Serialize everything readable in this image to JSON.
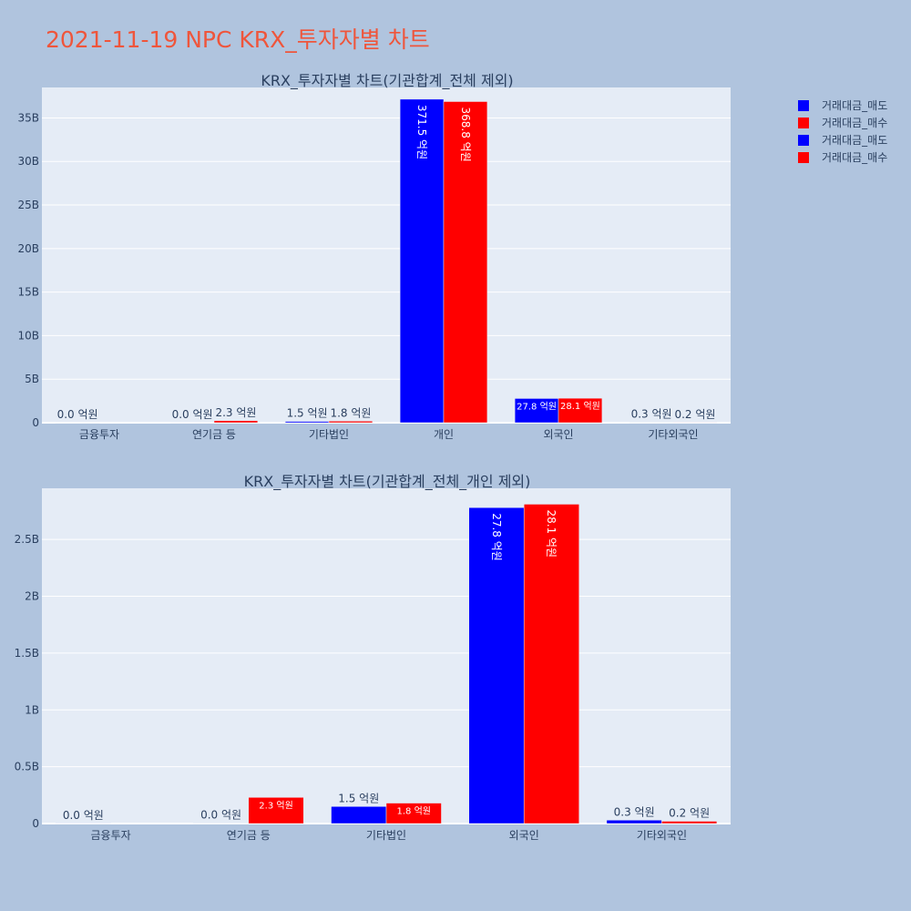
{
  "page_title": "2021-11-19 NPC KRX_투자자별 차트",
  "colors": {
    "sell": "#0000ff",
    "buy": "#ff0000",
    "plot_bg": "#e5ecf6",
    "paper_bg": "#b0c4de",
    "text": "#2a3f5f",
    "grid": "#ffffff"
  },
  "legend": {
    "items": [
      {
        "label": "거래대금_매도",
        "color": "#0000ff"
      },
      {
        "label": "거래대금_매수",
        "color": "#ff0000"
      },
      {
        "label": "거래대금_매도",
        "color": "#0000ff"
      },
      {
        "label": "거래대금_매수",
        "color": "#ff0000"
      }
    ]
  },
  "chart_data": [
    {
      "type": "bar",
      "title": "KRX_투자자별 차트(기관합계_전체 제외)",
      "categories": [
        "금융투자",
        "연기금 등",
        "기타법인",
        "개인",
        "외국인",
        "기타외국인"
      ],
      "series": [
        {
          "name": "거래대금_매도",
          "values": [
            1000000.0,
            3000000.0,
            150000000.0,
            37150000000.0,
            2780000000.0,
            30000000.0
          ],
          "labels": [
            "0.0 억원",
            "0.0 억원",
            "1.5 억원",
            "371.5 억원",
            "27.8 억원",
            "0.3 억원"
          ]
        },
        {
          "name": "거래대금_매수",
          "values": [
            0,
            230000000.0,
            180000000.0,
            36880000000.0,
            2810000000.0,
            20000000.0
          ],
          "labels": [
            "",
            "2.3 억원",
            "1.8 억원",
            "368.8 억원",
            "28.1 억원",
            "0.2 억원"
          ]
        }
      ],
      "ylim": [
        0,
        38500000000.0
      ],
      "yticks": [
        0,
        5000000000.0,
        10000000000.0,
        15000000000.0,
        20000000000.0,
        25000000000.0,
        30000000000.0,
        35000000000.0
      ],
      "ytick_labels": [
        "0",
        "5B",
        "10B",
        "15B",
        "20B",
        "25B",
        "30B",
        "35B"
      ],
      "grid": true
    },
    {
      "type": "bar",
      "title": "KRX_투자자별 차트(기관합계_전체_개인 제외)",
      "categories": [
        "금융투자",
        "연기금 등",
        "기타법인",
        "외국인",
        "기타외국인"
      ],
      "series": [
        {
          "name": "거래대금_매도",
          "values": [
            1000000.0,
            3000000.0,
            150000000.0,
            2780000000.0,
            30000000.0
          ],
          "labels": [
            "0.0 억원",
            "0.0 억원",
            "1.5 억원",
            "27.8 억원",
            "0.3 억원"
          ]
        },
        {
          "name": "거래대금_매수",
          "values": [
            0,
            230000000.0,
            180000000.0,
            2810000000.0,
            20000000.0
          ],
          "labels": [
            "",
            "2.3 억원",
            "1.8 억원",
            "28.1 억원",
            "0.2 억원"
          ]
        }
      ],
      "ylim": [
        0,
        2950000000.0
      ],
      "yticks": [
        0,
        500000000.0,
        1000000000.0,
        1500000000.0,
        2000000000.0,
        2500000000.0
      ],
      "ytick_labels": [
        "0",
        "0.5B",
        "1B",
        "1.5B",
        "2B",
        "2.5B"
      ],
      "grid": true
    }
  ]
}
